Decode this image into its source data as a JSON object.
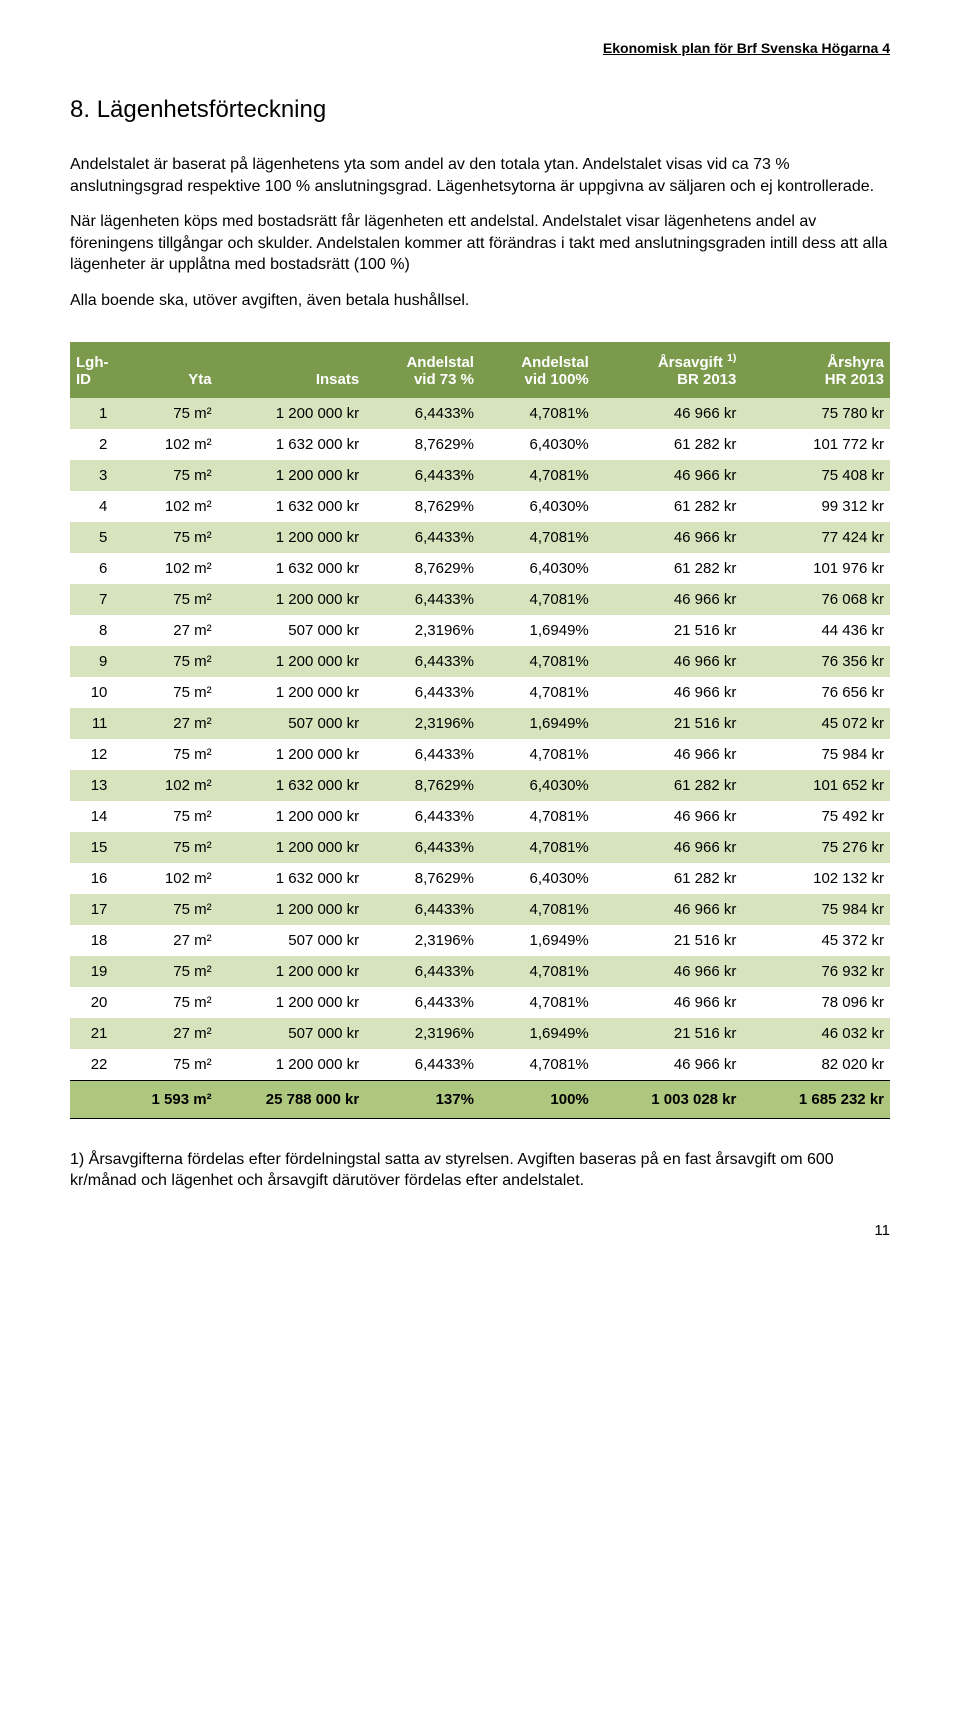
{
  "header": {
    "doc_title": "Ekonomisk plan för Brf Svenska Högarna 4"
  },
  "section": {
    "number": "8.",
    "title": "Lägenhetsförteckning"
  },
  "paragraphs": {
    "p1": "Andelstalet är baserat på lägenhetens yta som andel av den totala ytan. Andelstalet visas vid ca 73 % anslutningsgrad respektive 100 % anslutningsgrad. Lägenhetsytorna är uppgivna av säljaren och ej kontrollerade.",
    "p2": "När lägenheten köps med bostadsrätt får lägenheten ett andelstal. Andelstalet visar lägenhetens andel av föreningens tillgångar och skulder. Andelstalen kommer att förändras i takt med anslutningsgraden intill dess att alla lägenheter är upplåtna med bostadsrätt (100 %)",
    "p3": "Alla boende ska, utöver avgiften, även betala hushållsel."
  },
  "table": {
    "header_bg": "#7b9a4c",
    "row_alt_bg": "#d6e3bd",
    "row_bg": "#ffffff",
    "footer_bg": "#aec77f",
    "border_color": "#000000",
    "columns": {
      "id": {
        "l1": "Lgh-",
        "l2": "ID"
      },
      "yta": {
        "l1": "Yta",
        "l2": ""
      },
      "insats": {
        "l1": "Insats",
        "l2": ""
      },
      "a73": {
        "l1": "Andelstal",
        "l2": "vid 73 %"
      },
      "a100": {
        "l1": "Andelstal",
        "l2": "vid 100%"
      },
      "avgift": {
        "l1": "Årsavgift",
        "sup": "1)",
        "l2": "BR 2013"
      },
      "hyra": {
        "l1": "Årshyra",
        "l2": "HR 2013"
      }
    },
    "rows": [
      {
        "id": "1",
        "yta": "75 m²",
        "insats": "1 200 000 kr",
        "a73": "6,4433%",
        "a100": "4,7081%",
        "avgift": "46 966 kr",
        "hyra": "75 780 kr"
      },
      {
        "id": "2",
        "yta": "102 m²",
        "insats": "1 632 000 kr",
        "a73": "8,7629%",
        "a100": "6,4030%",
        "avgift": "61 282 kr",
        "hyra": "101 772 kr"
      },
      {
        "id": "3",
        "yta": "75 m²",
        "insats": "1 200 000 kr",
        "a73": "6,4433%",
        "a100": "4,7081%",
        "avgift": "46 966 kr",
        "hyra": "75 408 kr"
      },
      {
        "id": "4",
        "yta": "102 m²",
        "insats": "1 632 000 kr",
        "a73": "8,7629%",
        "a100": "6,4030%",
        "avgift": "61 282 kr",
        "hyra": "99 312 kr"
      },
      {
        "id": "5",
        "yta": "75 m²",
        "insats": "1 200 000 kr",
        "a73": "6,4433%",
        "a100": "4,7081%",
        "avgift": "46 966 kr",
        "hyra": "77 424 kr"
      },
      {
        "id": "6",
        "yta": "102 m²",
        "insats": "1 632 000 kr",
        "a73": "8,7629%",
        "a100": "6,4030%",
        "avgift": "61 282 kr",
        "hyra": "101 976 kr"
      },
      {
        "id": "7",
        "yta": "75 m²",
        "insats": "1 200 000 kr",
        "a73": "6,4433%",
        "a100": "4,7081%",
        "avgift": "46 966 kr",
        "hyra": "76 068 kr"
      },
      {
        "id": "8",
        "yta": "27 m²",
        "insats": "507 000 kr",
        "a73": "2,3196%",
        "a100": "1,6949%",
        "avgift": "21 516 kr",
        "hyra": "44 436 kr"
      },
      {
        "id": "9",
        "yta": "75 m²",
        "insats": "1 200 000 kr",
        "a73": "6,4433%",
        "a100": "4,7081%",
        "avgift": "46 966 kr",
        "hyra": "76 356 kr"
      },
      {
        "id": "10",
        "yta": "75 m²",
        "insats": "1 200 000 kr",
        "a73": "6,4433%",
        "a100": "4,7081%",
        "avgift": "46 966 kr",
        "hyra": "76 656 kr"
      },
      {
        "id": "11",
        "yta": "27 m²",
        "insats": "507 000 kr",
        "a73": "2,3196%",
        "a100": "1,6949%",
        "avgift": "21 516 kr",
        "hyra": "45 072 kr"
      },
      {
        "id": "12",
        "yta": "75 m²",
        "insats": "1 200 000 kr",
        "a73": "6,4433%",
        "a100": "4,7081%",
        "avgift": "46 966 kr",
        "hyra": "75 984 kr"
      },
      {
        "id": "13",
        "yta": "102 m²",
        "insats": "1 632 000 kr",
        "a73": "8,7629%",
        "a100": "6,4030%",
        "avgift": "61 282 kr",
        "hyra": "101 652 kr"
      },
      {
        "id": "14",
        "yta": "75 m²",
        "insats": "1 200 000 kr",
        "a73": "6,4433%",
        "a100": "4,7081%",
        "avgift": "46 966 kr",
        "hyra": "75 492 kr"
      },
      {
        "id": "15",
        "yta": "75 m²",
        "insats": "1 200 000 kr",
        "a73": "6,4433%",
        "a100": "4,7081%",
        "avgift": "46 966 kr",
        "hyra": "75 276 kr"
      },
      {
        "id": "16",
        "yta": "102 m²",
        "insats": "1 632 000 kr",
        "a73": "8,7629%",
        "a100": "6,4030%",
        "avgift": "61 282 kr",
        "hyra": "102 132 kr"
      },
      {
        "id": "17",
        "yta": "75 m²",
        "insats": "1 200 000 kr",
        "a73": "6,4433%",
        "a100": "4,7081%",
        "avgift": "46 966 kr",
        "hyra": "75 984 kr"
      },
      {
        "id": "18",
        "yta": "27 m²",
        "insats": "507 000 kr",
        "a73": "2,3196%",
        "a100": "1,6949%",
        "avgift": "21 516 kr",
        "hyra": "45 372 kr"
      },
      {
        "id": "19",
        "yta": "75 m²",
        "insats": "1 200 000 kr",
        "a73": "6,4433%",
        "a100": "4,7081%",
        "avgift": "46 966 kr",
        "hyra": "76 932 kr"
      },
      {
        "id": "20",
        "yta": "75 m²",
        "insats": "1 200 000 kr",
        "a73": "6,4433%",
        "a100": "4,7081%",
        "avgift": "46 966 kr",
        "hyra": "78 096 kr"
      },
      {
        "id": "21",
        "yta": "27 m²",
        "insats": "507 000 kr",
        "a73": "2,3196%",
        "a100": "1,6949%",
        "avgift": "21 516 kr",
        "hyra": "46 032 kr"
      },
      {
        "id": "22",
        "yta": "75 m²",
        "insats": "1 200 000 kr",
        "a73": "6,4433%",
        "a100": "4,7081%",
        "avgift": "46 966 kr",
        "hyra": "82 020 kr"
      }
    ],
    "totals": {
      "id": "",
      "yta": "1 593 m²",
      "insats": "25 788 000 kr",
      "a73": "137%",
      "a100": "100%",
      "avgift": "1 003 028 kr",
      "hyra": "1 685 232 kr"
    }
  },
  "footnote": "1) Årsavgifterna fördelas efter fördelningstal satta av styrelsen. Avgiften baseras på en fast årsavgift om 600 kr/månad och lägenhet och årsavgift därutöver fördelas efter andelstalet.",
  "page_number": "11"
}
